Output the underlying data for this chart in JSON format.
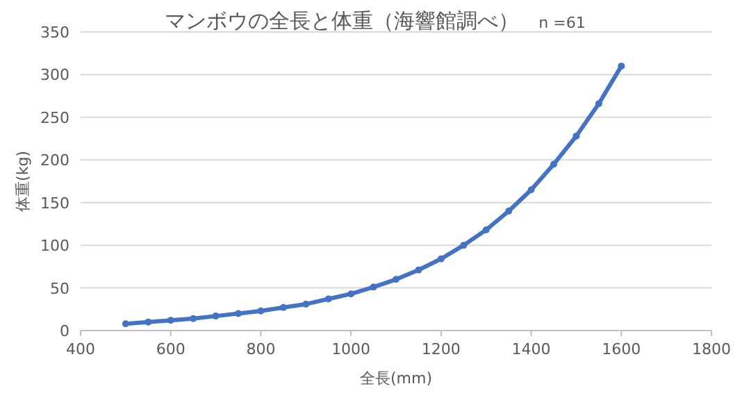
{
  "chart_data": {
    "type": "line",
    "title": "マンボウの全長と体重（海響館調べ）",
    "subtitle": "n =61",
    "xlabel": "全長(mm)",
    "ylabel": "体重(kg)",
    "xlim": [
      400,
      1800
    ],
    "xticks": [
      400,
      600,
      800,
      1000,
      1200,
      1400,
      1600,
      1800
    ],
    "ylim": [
      0,
      350
    ],
    "yticks": [
      0,
      50,
      100,
      150,
      200,
      250,
      300,
      350
    ],
    "grid": "y",
    "marker": "circle",
    "line_style": "solid",
    "series": [
      {
        "color": "#4472c4",
        "x": [
          500,
          550,
          600,
          650,
          700,
          750,
          800,
          850,
          900,
          950,
          1000,
          1050,
          1100,
          1150,
          1200,
          1250,
          1300,
          1350,
          1400,
          1450,
          1500,
          1550,
          1600
        ],
        "values": [
          8,
          10,
          12,
          14,
          17,
          20,
          23,
          27,
          31,
          37,
          43,
          51,
          60,
          71,
          84,
          100,
          118,
          140,
          165,
          195,
          228,
          266,
          310
        ]
      }
    ]
  }
}
